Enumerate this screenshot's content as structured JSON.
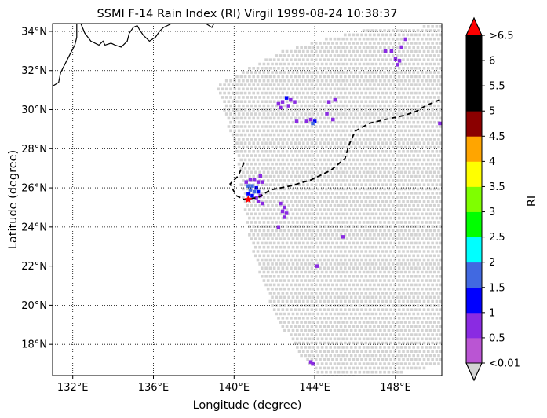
{
  "chart_data": {
    "type": "scatter",
    "title": "SSMI F-14 Rain Index (RI) Virgil 1999-08-24 10:38:37",
    "xlabel": "Longitude (degree)",
    "ylabel": "Latitude (degree)",
    "xlim": [
      131.0,
      150.3
    ],
    "ylim": [
      16.4,
      34.4
    ],
    "x_ticks": [
      132,
      136,
      140,
      144,
      148
    ],
    "x_tick_labels": [
      "132°E",
      "136°E",
      "140°E",
      "144°E",
      "148°E"
    ],
    "y_ticks": [
      18,
      20,
      22,
      24,
      26,
      28,
      30,
      32,
      34
    ],
    "y_tick_labels": [
      "18°N",
      "20°N",
      "22°N",
      "24°N",
      "26°N",
      "28°N",
      "30°N",
      "32°N",
      "34°N"
    ],
    "grid": true,
    "grid_style": "dotted",
    "colorbar": {
      "label": "RI",
      "boundaries": [
        "<0.01",
        "0.5",
        "1",
        "1.5",
        "2",
        "2.5",
        "3",
        "3.5",
        "4",
        "4.5",
        "5",
        "5.5",
        "6",
        ">6.5"
      ],
      "colors": [
        "#ba55d3",
        "#8a2be2",
        "#0000ff",
        "#4169e1",
        "#00ffff",
        "#00ff00",
        "#7fff00",
        "#ffff00",
        "#ffa500",
        "#8b0000",
        "#000000",
        "#000000",
        "#000000"
      ],
      "over_color": "#ff0000",
      "under_color": "#d3d3d3",
      "extend": "both"
    },
    "no_rain_color": "#d3d3d3",
    "swath_outline": [
      [
        139.1,
        31.3
      ],
      [
        140.5,
        32.1
      ],
      [
        142.2,
        33.0
      ],
      [
        144.0,
        33.6
      ],
      [
        146.2,
        34.1
      ],
      [
        148.5,
        34.3
      ],
      [
        150.3,
        34.35
      ],
      [
        150.3,
        17.0
      ],
      [
        148.0,
        16.6
      ],
      [
        145.5,
        16.4
      ],
      [
        144.3,
        16.4
      ],
      [
        143.1,
        17.6
      ],
      [
        141.9,
        19.7
      ],
      [
        141.1,
        22.0
      ],
      [
        140.6,
        24.0
      ],
      [
        140.3,
        26.0
      ],
      [
        140.1,
        27.5
      ],
      [
        139.7,
        29.0
      ],
      [
        139.3,
        30.5
      ]
    ],
    "rain_points": [
      {
        "lon": 140.6,
        "lat": 26.3,
        "ri": 0.5
      },
      {
        "lon": 140.8,
        "lat": 26.4,
        "ri": 0.5
      },
      {
        "lon": 141.0,
        "lat": 26.4,
        "ri": 0.5
      },
      {
        "lon": 141.2,
        "lat": 26.3,
        "ri": 0.5
      },
      {
        "lon": 141.4,
        "lat": 26.3,
        "ri": 0.5
      },
      {
        "lon": 141.3,
        "lat": 26.6,
        "ri": 0.5
      },
      {
        "lon": 140.7,
        "lat": 26.1,
        "ri": 1.5
      },
      {
        "lon": 140.9,
        "lat": 26.1,
        "ri": 1.5
      },
      {
        "lon": 141.1,
        "lat": 26.0,
        "ri": 1.0
      },
      {
        "lon": 140.8,
        "lat": 25.9,
        "ri": 1.5
      },
      {
        "lon": 141.0,
        "lat": 25.8,
        "ri": 1.5
      },
      {
        "lon": 140.7,
        "lat": 25.7,
        "ri": 1.0
      },
      {
        "lon": 141.2,
        "lat": 25.8,
        "ri": 1.0
      },
      {
        "lon": 140.9,
        "lat": 25.6,
        "ri": 1.0
      },
      {
        "lon": 141.1,
        "lat": 25.5,
        "ri": 0.5
      },
      {
        "lon": 141.3,
        "lat": 25.6,
        "ri": 0.5
      },
      {
        "lon": 141.2,
        "lat": 25.3,
        "ri": 0.5
      },
      {
        "lon": 141.4,
        "lat": 25.2,
        "ri": 0.5
      },
      {
        "lon": 142.3,
        "lat": 25.2,
        "ri": 0.5
      },
      {
        "lon": 142.5,
        "lat": 25.0,
        "ri": 0.5
      },
      {
        "lon": 142.4,
        "lat": 24.8,
        "ri": 0.5
      },
      {
        "lon": 142.6,
        "lat": 24.7,
        "ri": 0.5
      },
      {
        "lon": 142.5,
        "lat": 24.5,
        "ri": 0.5
      },
      {
        "lon": 142.2,
        "lat": 24.0,
        "ri": 0.5
      },
      {
        "lon": 142.6,
        "lat": 30.6,
        "ri": 1.0
      },
      {
        "lon": 142.4,
        "lat": 30.4,
        "ri": 0.5
      },
      {
        "lon": 142.2,
        "lat": 30.3,
        "ri": 0.5
      },
      {
        "lon": 142.8,
        "lat": 30.5,
        "ri": 0.5
      },
      {
        "lon": 143.0,
        "lat": 30.4,
        "ri": 0.5
      },
      {
        "lon": 142.7,
        "lat": 30.2,
        "ri": 0.5
      },
      {
        "lon": 142.3,
        "lat": 30.1,
        "ri": 0.5
      },
      {
        "lon": 143.1,
        "lat": 29.4,
        "ri": 0.5
      },
      {
        "lon": 143.6,
        "lat": 29.4,
        "ri": 0.5
      },
      {
        "lon": 143.8,
        "lat": 29.5,
        "ri": 0.5
      },
      {
        "lon": 144.0,
        "lat": 29.4,
        "ri": 1.0
      },
      {
        "lon": 143.9,
        "lat": 29.3,
        "ri": 1.5
      },
      {
        "lon": 144.6,
        "lat": 29.8,
        "ri": 0.5
      },
      {
        "lon": 144.9,
        "lat": 29.5,
        "ri": 0.5
      },
      {
        "lon": 144.7,
        "lat": 30.4,
        "ri": 0.5
      },
      {
        "lon": 145.0,
        "lat": 30.5,
        "ri": 0.5
      },
      {
        "lon": 147.5,
        "lat": 33.0,
        "ri": 0.5
      },
      {
        "lon": 147.8,
        "lat": 33.0,
        "ri": 0.5
      },
      {
        "lon": 148.5,
        "lat": 33.6,
        "ri": 0.5
      },
      {
        "lon": 148.3,
        "lat": 33.2,
        "ri": 0.5
      },
      {
        "lon": 148.0,
        "lat": 32.6,
        "ri": 0.5
      },
      {
        "lon": 148.2,
        "lat": 32.5,
        "ri": 0.5
      },
      {
        "lon": 148.1,
        "lat": 32.3,
        "ri": 0.5
      },
      {
        "lon": 150.2,
        "lat": 29.3,
        "ri": 0.5
      },
      {
        "lon": 145.4,
        "lat": 23.5,
        "ri": 0.5
      },
      {
        "lon": 144.1,
        "lat": 22.0,
        "ri": 0.5
      },
      {
        "lon": 143.8,
        "lat": 17.1,
        "ri": 0.5
      },
      {
        "lon": 143.9,
        "lat": 17.0,
        "ri": 0.5
      }
    ],
    "track": [
      [
        140.5,
        27.3
      ],
      [
        140.2,
        26.6
      ],
      [
        139.8,
        26.2
      ],
      [
        140.1,
        25.6
      ],
      [
        140.5,
        25.4
      ],
      [
        141.2,
        25.5
      ],
      [
        141.8,
        25.9
      ],
      [
        142.8,
        26.1
      ],
      [
        143.8,
        26.4
      ],
      [
        144.8,
        26.9
      ],
      [
        145.5,
        27.5
      ],
      [
        145.7,
        28.2
      ],
      [
        146.0,
        28.9
      ],
      [
        146.7,
        29.3
      ],
      [
        147.5,
        29.5
      ],
      [
        148.4,
        29.7
      ],
      [
        149.0,
        29.9
      ],
      [
        149.5,
        30.2
      ],
      [
        150.3,
        30.55
      ]
    ],
    "storm_center": {
      "lon": 140.7,
      "lat": 25.4
    },
    "coastline": {
      "mainland": [
        [
          131.0,
          31.2
        ],
        [
          131.3,
          31.4
        ],
        [
          131.4,
          31.9
        ],
        [
          131.6,
          32.3
        ],
        [
          131.9,
          32.9
        ],
        [
          132.1,
          33.3
        ],
        [
          132.2,
          33.7
        ],
        [
          132.2,
          34.4
        ]
      ],
      "shikoku": [
        [
          132.4,
          34.4
        ],
        [
          132.6,
          33.9
        ],
        [
          132.9,
          33.5
        ],
        [
          133.3,
          33.3
        ],
        [
          133.5,
          33.5
        ],
        [
          133.6,
          33.3
        ],
        [
          133.9,
          33.4
        ],
        [
          134.1,
          33.3
        ],
        [
          134.4,
          33.2
        ],
        [
          134.7,
          33.5
        ],
        [
          134.8,
          33.9
        ],
        [
          135.0,
          34.2
        ],
        [
          135.2,
          34.3
        ]
      ],
      "kii": [
        [
          135.2,
          34.3
        ],
        [
          135.3,
          34.1
        ],
        [
          135.5,
          33.8
        ],
        [
          135.8,
          33.5
        ],
        [
          136.1,
          33.7
        ],
        [
          136.3,
          34.0
        ],
        [
          136.5,
          34.2
        ],
        [
          136.7,
          34.3
        ],
        [
          136.9,
          34.4
        ]
      ],
      "izu": [
        [
          138.6,
          34.4
        ],
        [
          138.9,
          34.2
        ],
        [
          139.0,
          34.4
        ]
      ]
    }
  }
}
